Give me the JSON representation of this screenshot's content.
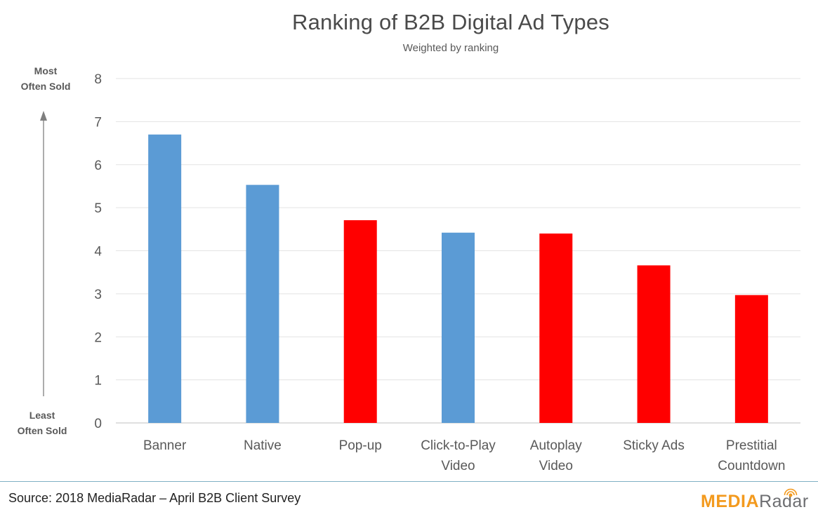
{
  "chart_data": {
    "type": "bar",
    "title": "Ranking of B2B Digital Ad Types",
    "subtitle": "Weighted by ranking",
    "categories": [
      [
        "Banner"
      ],
      [
        "Native"
      ],
      [
        "Pop-up"
      ],
      [
        "Click-to-Play",
        "Video"
      ],
      [
        "Autoplay",
        "Video"
      ],
      [
        "Sticky Ads"
      ],
      [
        "Prestitial",
        "Countdown"
      ]
    ],
    "values": [
      6.7,
      5.53,
      4.71,
      4.42,
      4.4,
      3.66,
      2.97
    ],
    "bar_colors": [
      "#5b9bd5",
      "#5b9bd5",
      "#ff0000",
      "#5b9bd5",
      "#ff0000",
      "#ff0000",
      "#ff0000"
    ],
    "ylim": [
      0,
      8
    ],
    "yticks": [
      0,
      1,
      2,
      3,
      4,
      5,
      6,
      7,
      8
    ],
    "grid": true,
    "y_annotation_top": [
      "Most",
      "Often Sold"
    ],
    "y_annotation_bottom": [
      "Least",
      "Often Sold"
    ]
  },
  "footer": {
    "source": "Source: 2018 MediaRadar – April B2B Client Survey",
    "logo_media": "MEDIA",
    "logo_radar": "Radar"
  }
}
